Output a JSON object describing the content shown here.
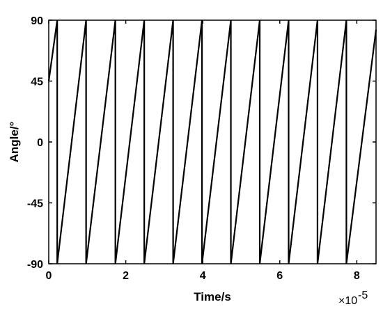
{
  "chart_data": {
    "type": "line",
    "xlabel": "Time/s",
    "ylabel": "Angle/°",
    "x_multiplier_base": "×10",
    "x_multiplier_exponent": "-5",
    "xlim": [
      0,
      8.5
    ],
    "ylim": [
      -90,
      90
    ],
    "x_ticks": [
      0,
      2,
      4,
      6,
      8
    ],
    "x_tick_labels": [
      "0",
      "2",
      "4",
      "6",
      "8"
    ],
    "y_ticks": [
      -90,
      -45,
      0,
      45,
      90
    ],
    "y_tick_labels": [
      "-90",
      "-45",
      "0",
      "45",
      "90"
    ],
    "grid": false,
    "legend": "none",
    "line_color": "#000000",
    "series": [
      {
        "x": [
          0.0,
          0.22,
          0.22,
          0.97,
          0.97,
          1.73,
          1.73,
          2.48,
          2.48,
          3.23,
          3.23,
          3.98,
          3.98,
          4.73,
          4.73,
          5.48,
          5.48,
          6.23,
          6.23,
          6.98,
          6.98,
          7.73,
          7.73,
          8.5
        ],
        "y": [
          45,
          90,
          -90,
          90,
          -90,
          90,
          -90,
          90,
          -90,
          90,
          -90,
          90,
          -90,
          90,
          -90,
          90,
          -90,
          90,
          -90,
          90,
          -90,
          90,
          -90,
          83
        ]
      }
    ]
  }
}
